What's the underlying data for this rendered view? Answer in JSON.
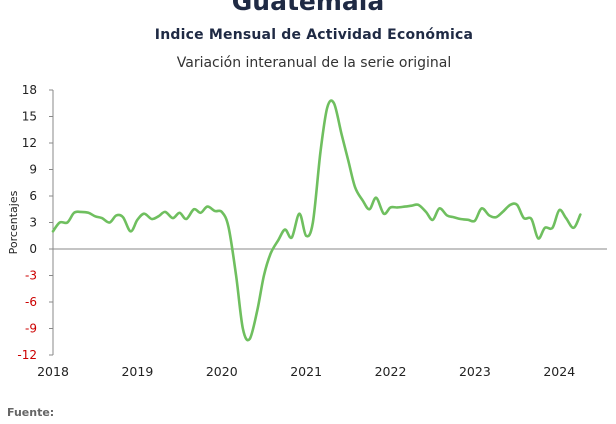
{
  "header": {
    "title": "Guatemala",
    "subtitle": "Indice Mensual de  Actividad Económica",
    "subsubtitle": "Variación interanual de la serie original"
  },
  "footer": {
    "source_label": "Fuente:"
  },
  "colors": {
    "line": "#6fbf5f",
    "negative_tick": "#cc0000",
    "zero_line": "#8a8a8a",
    "title": "#1f2a44"
  },
  "chart_data": {
    "type": "line",
    "title": "Guatemala",
    "ylabel": "Porcentajes",
    "xlabel": "",
    "ylim": [
      -12,
      18
    ],
    "xlim": [
      2018,
      2024.4
    ],
    "yticks": [
      18,
      15,
      12,
      9,
      6,
      3,
      0,
      -3,
      -6,
      -9,
      -12
    ],
    "xticks": [
      2018,
      2019,
      2020,
      2021,
      2022,
      2023,
      2024
    ],
    "grid": false,
    "series": [
      {
        "name": "",
        "points": [
          [
            2018.0,
            2.0
          ],
          [
            2018.08,
            3.0
          ],
          [
            2018.17,
            3.0
          ],
          [
            2018.25,
            4.1
          ],
          [
            2018.33,
            4.2
          ],
          [
            2018.42,
            4.1
          ],
          [
            2018.5,
            3.7
          ],
          [
            2018.58,
            3.5
          ],
          [
            2018.67,
            3.0
          ],
          [
            2018.75,
            3.8
          ],
          [
            2018.83,
            3.6
          ],
          [
            2018.92,
            2.0
          ],
          [
            2019.0,
            3.3
          ],
          [
            2019.08,
            4.0
          ],
          [
            2019.17,
            3.4
          ],
          [
            2019.25,
            3.7
          ],
          [
            2019.33,
            4.2
          ],
          [
            2019.42,
            3.5
          ],
          [
            2019.5,
            4.1
          ],
          [
            2019.58,
            3.4
          ],
          [
            2019.67,
            4.5
          ],
          [
            2019.75,
            4.1
          ],
          [
            2019.83,
            4.8
          ],
          [
            2019.92,
            4.3
          ],
          [
            2020.0,
            4.2
          ],
          [
            2020.08,
            2.5
          ],
          [
            2020.17,
            -3.0
          ],
          [
            2020.25,
            -9.0
          ],
          [
            2020.33,
            -10.2
          ],
          [
            2020.42,
            -7.0
          ],
          [
            2020.5,
            -3.0
          ],
          [
            2020.58,
            -0.5
          ],
          [
            2020.67,
            1.0
          ],
          [
            2020.75,
            2.2
          ],
          [
            2020.83,
            1.3
          ],
          [
            2020.92,
            4.0
          ],
          [
            2021.0,
            1.5
          ],
          [
            2021.08,
            3.0
          ],
          [
            2021.17,
            11.0
          ],
          [
            2021.25,
            16.0
          ],
          [
            2021.33,
            16.5
          ],
          [
            2021.42,
            13.0
          ],
          [
            2021.5,
            10.0
          ],
          [
            2021.58,
            7.0
          ],
          [
            2021.67,
            5.5
          ],
          [
            2021.75,
            4.5
          ],
          [
            2021.83,
            5.8
          ],
          [
            2021.92,
            4.0
          ],
          [
            2022.0,
            4.7
          ],
          [
            2022.08,
            4.7
          ],
          [
            2022.17,
            4.8
          ],
          [
            2022.25,
            4.9
          ],
          [
            2022.33,
            5.0
          ],
          [
            2022.42,
            4.2
          ],
          [
            2022.5,
            3.3
          ],
          [
            2022.58,
            4.6
          ],
          [
            2022.67,
            3.8
          ],
          [
            2022.75,
            3.6
          ],
          [
            2022.83,
            3.4
          ],
          [
            2022.92,
            3.3
          ],
          [
            2023.0,
            3.2
          ],
          [
            2023.08,
            4.6
          ],
          [
            2023.17,
            3.8
          ],
          [
            2023.25,
            3.6
          ],
          [
            2023.33,
            4.2
          ],
          [
            2023.42,
            5.0
          ],
          [
            2023.5,
            5.0
          ],
          [
            2023.58,
            3.5
          ],
          [
            2023.67,
            3.4
          ],
          [
            2023.75,
            1.2
          ],
          [
            2023.83,
            2.4
          ],
          [
            2023.92,
            2.4
          ],
          [
            2024.0,
            4.4
          ],
          [
            2024.08,
            3.5
          ],
          [
            2024.17,
            2.4
          ],
          [
            2024.25,
            3.9
          ]
        ]
      }
    ]
  }
}
